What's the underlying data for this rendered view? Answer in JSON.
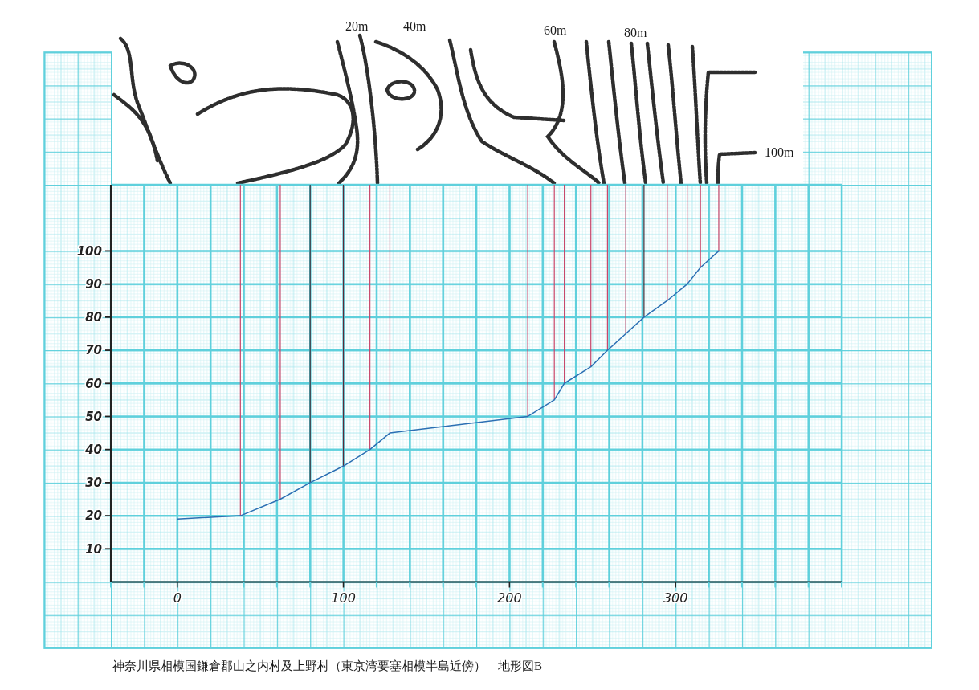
{
  "chart_data": {
    "type": "line",
    "x": [
      0,
      38,
      62,
      80,
      100,
      116,
      128,
      211,
      227,
      233,
      249,
      259,
      270,
      281,
      295,
      307,
      315,
      326
    ],
    "values": [
      19,
      20,
      25,
      30,
      35,
      40,
      45,
      50,
      55,
      60,
      65,
      70,
      75,
      80,
      85,
      90,
      95,
      100
    ],
    "color": "#2b6fb3",
    "xlim": [
      -40,
      400
    ],
    "ylim": [
      0,
      120
    ],
    "xticks": [
      {
        "value": -40,
        "label": null
      },
      {
        "value": -20,
        "label": null
      },
      0,
      {
        "value": 20,
        "label": null
      },
      {
        "value": 40,
        "label": null
      },
      {
        "value": 60,
        "label": null
      },
      {
        "value": 80,
        "label": null
      },
      100,
      {
        "value": 120,
        "label": null
      },
      {
        "value": 140,
        "label": null
      },
      {
        "value": 160,
        "label": null
      },
      {
        "value": 180,
        "label": null
      },
      200,
      {
        "value": 220,
        "label": null
      },
      {
        "value": 240,
        "label": null
      },
      {
        "value": 260,
        "label": null
      },
      {
        "value": 280,
        "label": null
      },
      300,
      {
        "value": 320,
        "label": null
      },
      {
        "value": 340,
        "label": null
      },
      {
        "value": 360,
        "label": null
      },
      {
        "value": 380,
        "label": null
      },
      {
        "value": 400,
        "label": null
      }
    ],
    "yticks": [
      10,
      20,
      30,
      40,
      50,
      60,
      70,
      80,
      90,
      100
    ],
    "grid": true,
    "ref_lines": [
      {
        "axis": "x",
        "value": 38,
        "color": "#c8466a"
      },
      {
        "axis": "x",
        "value": 62,
        "color": "#c8466a"
      },
      {
        "axis": "x",
        "value": 80,
        "color": "#3a2c36"
      },
      {
        "axis": "x",
        "value": 100,
        "color": "#5a2a38"
      },
      {
        "axis": "x",
        "value": 116,
        "color": "#c8466a"
      },
      {
        "axis": "x",
        "value": 128,
        "color": "#c8466a"
      },
      {
        "axis": "x",
        "value": 211,
        "color": "#c8466a"
      },
      {
        "axis": "x",
        "value": 227,
        "color": "#c8466a"
      },
      {
        "axis": "x",
        "value": 233,
        "color": "#c8466a"
      },
      {
        "axis": "x",
        "value": 249,
        "color": "#c8466a"
      },
      {
        "axis": "x",
        "value": 259,
        "color": "#c8466a"
      },
      {
        "axis": "x",
        "value": 270,
        "color": "#c8466a"
      },
      {
        "axis": "x",
        "value": 281,
        "color": "#3a2c36"
      },
      {
        "axis": "x",
        "value": 295,
        "color": "#c8466a"
      },
      {
        "axis": "x",
        "value": 307,
        "color": "#c8466a"
      },
      {
        "axis": "x",
        "value": 315,
        "color": "#c8466a"
      },
      {
        "axis": "x",
        "value": 326,
        "color": "#c8466a"
      }
    ],
    "annotations": [
      "20m",
      "40m",
      "60m",
      "80m",
      "100m",
      "神奈川県相模国鎌倉郡山之内村及上野村（東京湾要塞相模半島近傍）　地形図B"
    ]
  }
}
